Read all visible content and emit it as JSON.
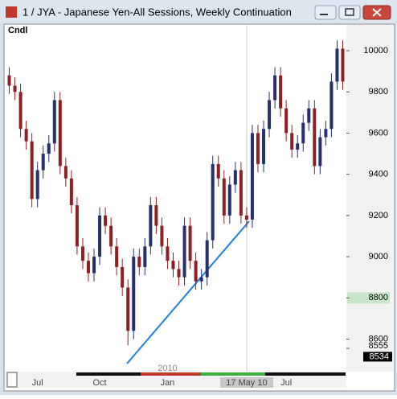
{
  "window": {
    "title": "1 / JYA - Japanese Yen-All Sessions, Weekly Continuation"
  },
  "chart_data": {
    "type": "candlestick",
    "label": "Cndl",
    "year_label": "2010",
    "categories": [
      null,
      null,
      null,
      null,
      null,
      "Jul",
      null,
      null,
      null,
      null,
      null,
      null,
      null,
      null,
      null,
      null,
      "Oct",
      null,
      null,
      null,
      null,
      null,
      null,
      null,
      null,
      null,
      null,
      null,
      "Jan",
      null,
      null,
      null,
      null,
      null,
      null,
      null,
      null,
      null,
      null,
      null,
      null,
      null,
      "17 May 10",
      null,
      null,
      null,
      null,
      null,
      null,
      "Jul",
      null,
      null,
      null,
      null,
      null,
      null,
      null,
      null,
      null,
      null
    ],
    "open": [
      9880,
      9830,
      9800,
      9620,
      9560,
      9280,
      9420,
      9500,
      9550,
      9760,
      9440,
      9380,
      9250,
      9050,
      8980,
      8920,
      9000,
      9200,
      9150,
      9050,
      8950,
      8850,
      8640,
      9000,
      8950,
      9050,
      9250,
      9150,
      9050,
      8980,
      8940,
      8900,
      9150,
      8980,
      8880,
      8900,
      9080,
      9450,
      9380,
      9200,
      9350,
      9420,
      9200,
      9180,
      9600,
      9450,
      9620,
      9760,
      9880,
      9720,
      9600,
      9520,
      9550,
      9650,
      9720,
      9440,
      9580,
      9620,
      9850,
      10010
    ],
    "high": [
      9920,
      9870,
      9840,
      9660,
      9600,
      9460,
      9540,
      9590,
      9800,
      9800,
      9480,
      9420,
      9290,
      9090,
      9020,
      9040,
      9240,
      9240,
      9190,
      9090,
      8990,
      8890,
      9040,
      9040,
      9090,
      9290,
      9290,
      9190,
      9090,
      9020,
      8980,
      9190,
      9190,
      9020,
      8940,
      9120,
      9490,
      9490,
      9420,
      9390,
      9460,
      9460,
      9240,
      9640,
      9640,
      9660,
      9800,
      9920,
      9920,
      9760,
      9640,
      9590,
      9690,
      9760,
      9760,
      9620,
      9660,
      9890,
      10050,
      10050
    ],
    "low": [
      9790,
      9760,
      9580,
      9520,
      9240,
      9240,
      9380,
      9460,
      9510,
      9400,
      9340,
      9210,
      9010,
      8940,
      8880,
      8880,
      8960,
      9110,
      9010,
      8910,
      8810,
      8570,
      8600,
      8910,
      8910,
      9010,
      9110,
      9010,
      8940,
      8900,
      8860,
      8860,
      8940,
      8840,
      8840,
      8860,
      9040,
      9340,
      9160,
      9160,
      9310,
      9160,
      9140,
      9140,
      9410,
      9410,
      9580,
      9720,
      9680,
      9560,
      9480,
      9480,
      9510,
      9610,
      9400,
      9400,
      9540,
      9580,
      9810,
      9810
    ],
    "close": [
      9830,
      9800,
      9620,
      9560,
      9280,
      9420,
      9500,
      9550,
      9760,
      9440,
      9380,
      9250,
      9050,
      8980,
      8920,
      9000,
      9200,
      9150,
      9050,
      8950,
      8850,
      8640,
      9000,
      8950,
      9050,
      9250,
      9150,
      9050,
      8980,
      8940,
      8900,
      9150,
      8980,
      8880,
      8900,
      9080,
      9450,
      9380,
      9200,
      9350,
      9420,
      9200,
      9180,
      9600,
      9450,
      9620,
      9760,
      9880,
      9720,
      9600,
      9520,
      9550,
      9650,
      9720,
      9440,
      9580,
      9620,
      9850,
      10010,
      9850
    ],
    "up_color": "#26306c",
    "down_color": "#8e1f25",
    "ylim": [
      8442,
      10125
    ],
    "yticks": [
      8600,
      8800,
      9000,
      9200,
      9400,
      9600,
      9800,
      10000
    ],
    "grid": false,
    "highlight_level": 8800,
    "marker_level": 8555,
    "last_price": 8534
  }
}
